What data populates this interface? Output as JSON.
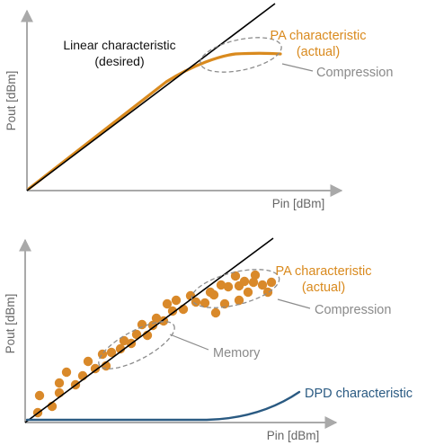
{
  "colors": {
    "axis": "#a9a9a9",
    "linear": "#000000",
    "pa": "#d98a1e",
    "dots": "#d9892a",
    "ellipse": "#8c8c8c",
    "dpd": "#2a5a82",
    "label_gray": "#8a8a8a"
  },
  "top_diagram": {
    "y_axis_label": "Pout [dBm]",
    "x_axis_label": "Pin [dBm]",
    "linear_label_line1": "Linear characteristic",
    "linear_label_line2": "(desired)",
    "pa_label_line1": "PA characteristic",
    "pa_label_line2": "(actual)",
    "compression_label": "Compression"
  },
  "bottom_diagram": {
    "y_axis_label": "Pout [dBm]",
    "x_axis_label": "Pin [dBm]",
    "pa_label_line1": "PA characteristic",
    "pa_label_line2": "(actual)",
    "compression_label": "Compression",
    "memory_label": "Memory",
    "dpd_label": "DPD characteristic"
  }
}
